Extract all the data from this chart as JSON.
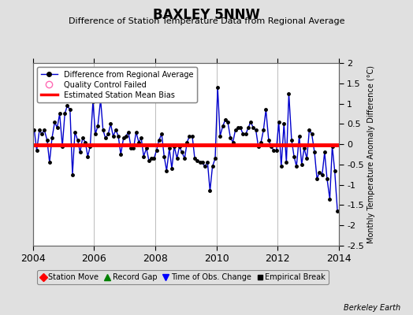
{
  "title": "BAXLEY 5NNW",
  "subtitle": "Difference of Station Temperature Data from Regional Average",
  "ylabel": "Monthly Temperature Anomaly Difference (°C)",
  "credit": "Berkeley Earth",
  "xlim": [
    2004.0,
    2014.0
  ],
  "ylim": [
    -2.5,
    2.0
  ],
  "yticks": [
    -2.5,
    -2.0,
    -1.5,
    -1.0,
    -0.5,
    0.0,
    0.5,
    1.0,
    1.5,
    2.0
  ],
  "xticks": [
    2004,
    2006,
    2008,
    2010,
    2012,
    2014
  ],
  "bias_line_y": -0.02,
  "background_color": "#e0e0e0",
  "plot_bg_color": "#ffffff",
  "line_color": "#0000cc",
  "marker_color": "#000000",
  "bias_color": "#ff0000",
  "times": [
    2004.04,
    2004.12,
    2004.21,
    2004.29,
    2004.37,
    2004.46,
    2004.54,
    2004.62,
    2004.71,
    2004.79,
    2004.87,
    2004.96,
    2005.04,
    2005.12,
    2005.21,
    2005.29,
    2005.37,
    2005.46,
    2005.54,
    2005.62,
    2005.71,
    2005.79,
    2005.87,
    2005.96,
    2006.04,
    2006.12,
    2006.21,
    2006.29,
    2006.37,
    2006.46,
    2006.54,
    2006.62,
    2006.71,
    2006.79,
    2006.87,
    2006.96,
    2007.04,
    2007.12,
    2007.21,
    2007.29,
    2007.37,
    2007.46,
    2007.54,
    2007.62,
    2007.71,
    2007.79,
    2007.87,
    2007.96,
    2008.04,
    2008.12,
    2008.21,
    2008.29,
    2008.37,
    2008.46,
    2008.54,
    2008.62,
    2008.71,
    2008.79,
    2008.87,
    2008.96,
    2009.04,
    2009.12,
    2009.21,
    2009.29,
    2009.37,
    2009.46,
    2009.54,
    2009.62,
    2009.71,
    2009.79,
    2009.87,
    2009.96,
    2010.04,
    2010.12,
    2010.21,
    2010.29,
    2010.37,
    2010.46,
    2010.54,
    2010.62,
    2010.71,
    2010.79,
    2010.87,
    2010.96,
    2011.04,
    2011.12,
    2011.21,
    2011.29,
    2011.37,
    2011.46,
    2011.54,
    2011.62,
    2011.71,
    2011.79,
    2011.87,
    2011.96,
    2012.04,
    2012.12,
    2012.21,
    2012.29,
    2012.37,
    2012.46,
    2012.54,
    2012.62,
    2012.71,
    2012.79,
    2012.87,
    2012.96,
    2013.04,
    2013.12,
    2013.21,
    2013.29,
    2013.37,
    2013.46,
    2013.54,
    2013.62,
    2013.71,
    2013.79,
    2013.87,
    2013.96
  ],
  "values": [
    0.35,
    -0.15,
    0.35,
    0.25,
    0.35,
    0.1,
    -0.45,
    0.15,
    0.55,
    0.4,
    0.75,
    -0.05,
    0.75,
    0.95,
    0.85,
    -0.75,
    0.3,
    0.1,
    -0.2,
    0.15,
    0.05,
    -0.3,
    -0.05,
    1.05,
    0.25,
    0.45,
    1.1,
    0.35,
    0.15,
    0.25,
    0.5,
    0.2,
    0.35,
    0.2,
    -0.25,
    0.15,
    0.2,
    0.3,
    -0.1,
    -0.1,
    0.3,
    0.05,
    0.15,
    -0.3,
    -0.1,
    -0.4,
    -0.35,
    -0.35,
    -0.15,
    0.1,
    0.25,
    -0.3,
    -0.65,
    -0.1,
    -0.6,
    -0.05,
    -0.35,
    -0.05,
    -0.2,
    -0.35,
    0.05,
    0.2,
    0.2,
    -0.35,
    -0.4,
    -0.45,
    -0.45,
    -0.55,
    -0.45,
    -1.15,
    -0.55,
    -0.35,
    1.4,
    0.2,
    0.45,
    0.6,
    0.55,
    0.15,
    0.05,
    0.35,
    0.4,
    0.4,
    0.25,
    0.25,
    0.4,
    0.55,
    0.4,
    0.35,
    -0.05,
    0.05,
    0.35,
    0.85,
    0.1,
    -0.05,
    -0.15,
    -0.15,
    0.55,
    -0.55,
    0.5,
    -0.45,
    1.25,
    0.1,
    -0.3,
    -0.55,
    0.2,
    -0.5,
    -0.1,
    -0.35,
    0.35,
    0.25,
    -0.2,
    -0.85,
    -0.7,
    -0.75,
    -0.2,
    -0.85,
    -1.35,
    -0.05,
    -0.65,
    -1.65
  ]
}
